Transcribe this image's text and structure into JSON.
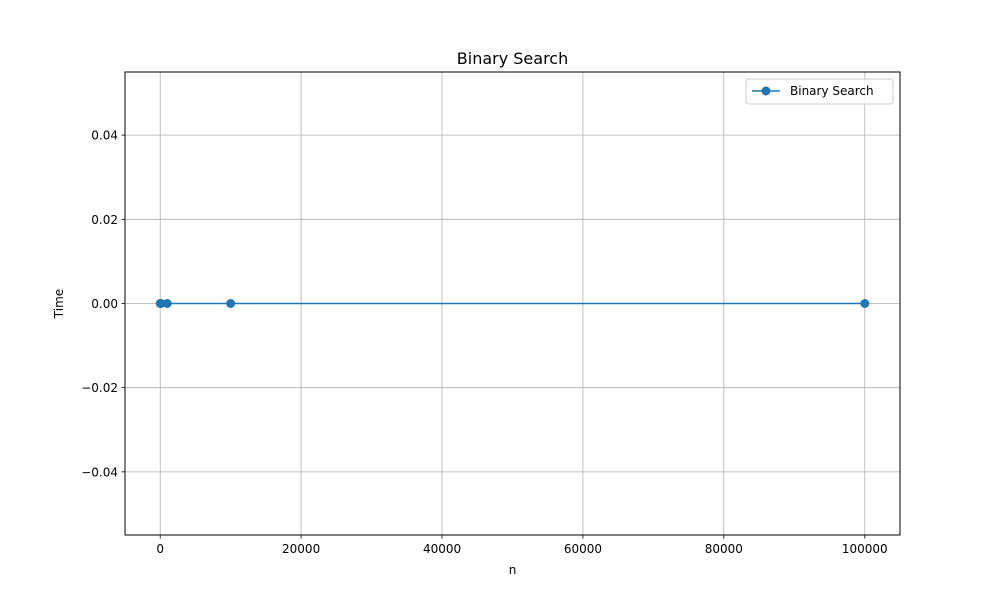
{
  "chart_data": {
    "type": "line",
    "title": "Binary Search",
    "xlabel": "n",
    "ylabel": "Time",
    "xlim": [
      -5000,
      105000
    ],
    "ylim": [
      -0.055,
      0.055
    ],
    "x_ticks": [
      0,
      20000,
      40000,
      60000,
      80000,
      100000
    ],
    "x_tick_labels": [
      "0",
      "20000",
      "40000",
      "60000",
      "80000",
      "100000"
    ],
    "y_ticks": [
      -0.04,
      -0.02,
      0.0,
      0.02,
      0.04
    ],
    "y_tick_labels": [
      "−0.04",
      "−0.02",
      "0.00",
      "0.02",
      "0.04"
    ],
    "grid": true,
    "legend_position": "top-right",
    "series": [
      {
        "name": "Binary Search",
        "color": "#1f77b4",
        "marker": "circle",
        "x": [
          10,
          100,
          1000,
          10000,
          100000
        ],
        "y": [
          0.0,
          0.0,
          0.0,
          0.0,
          0.0
        ]
      }
    ]
  }
}
